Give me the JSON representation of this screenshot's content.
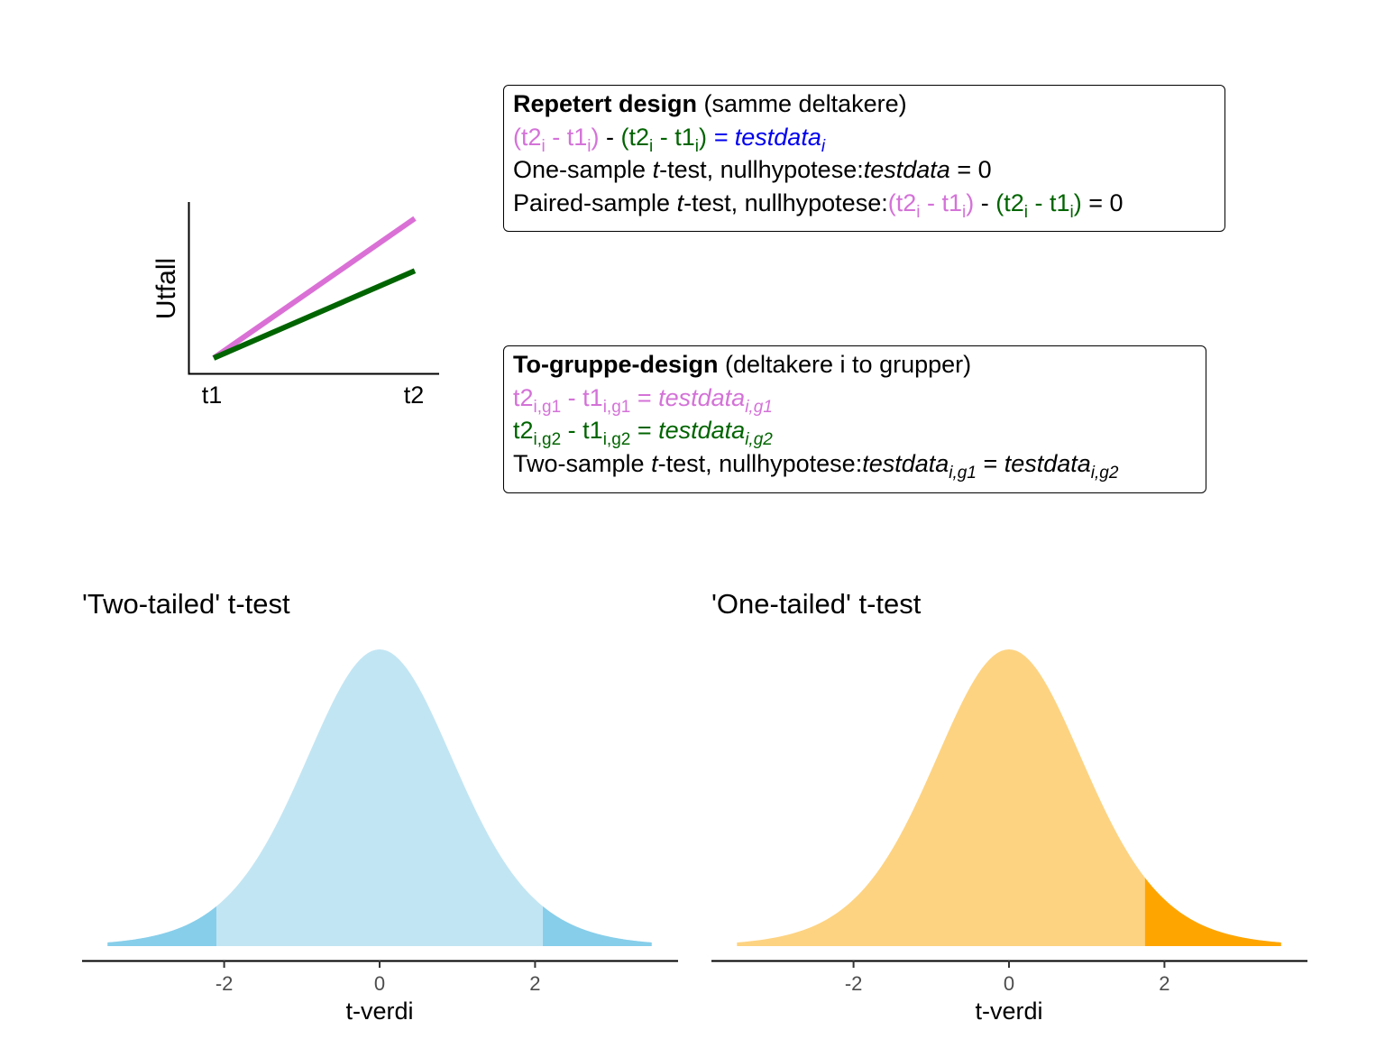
{
  "colors": {
    "violet": "#da70d6",
    "darkgreen": "#006400",
    "blue": "#0000ee",
    "lightblue_fill": "#c2e5f3",
    "skyblue_tail": "#87ceea",
    "lightorange_fill": "#fdd382",
    "orange_tail": "#ffa500"
  },
  "design_plot": {
    "ylabel": "Utfall",
    "xticks": [
      "t1",
      "t2"
    ]
  },
  "repeated_box": {
    "title_bold": "Repetert design",
    "title_rest": " (samme deltakere)",
    "eq_part1": "(t2",
    "sub_i": "i",
    "minus_space": " -  t1",
    "close_paren": ")",
    "minus_between": " -  ",
    "equals_testdata": " = testdata",
    "line3_prefix": "One-sample ",
    "t_italic": "t",
    "line3_mid": "-test,  nullhypotese:",
    "testdata_word": "testdata",
    "equals_zero": " = 0",
    "line4_prefix": "Paired-sample "
  },
  "group_box": {
    "title_bold": "To-gruppe-design",
    "title_rest": "  (deltakere i to grupper)",
    "t2": "t2",
    "t1": "t1",
    "sub_g1": "i,g1",
    "sub_g2": "i,g2",
    "minus_space": " -  ",
    "equals": " = ",
    "testdata_word": "testdata",
    "line4_prefix": "Two-sample ",
    "t_italic": "t",
    "line4_mid": "-test,  nullhypotese:"
  },
  "chart_data": [
    {
      "type": "line",
      "x": [
        "t1",
        "t2"
      ],
      "ylabel": "Utfall",
      "series": [
        {
          "color": "#da70d6",
          "values": [
            0,
            0.72
          ]
        },
        {
          "color": "#006400",
          "values": [
            0,
            0.45
          ]
        }
      ]
    },
    {
      "type": "area",
      "title": "'Two-tailed' t-test",
      "xlabel": "t-verdi",
      "xticks": [
        -2,
        0,
        2
      ],
      "xlim": [
        -3.5,
        3.5
      ],
      "distribution": "t density",
      "critical_values": [
        -2.1,
        2.1
      ],
      "fill_color": "#c2e5f3",
      "tail_color": "#87ceea"
    },
    {
      "type": "area",
      "title": "'One-tailed' t-test",
      "xlabel": "t-verdi",
      "xticks": [
        -2,
        0,
        2
      ],
      "xlim": [
        -3.5,
        3.5
      ],
      "distribution": "t density",
      "critical_values": [
        1.75
      ],
      "fill_color": "#fdd382",
      "tail_color": "#ffa500"
    }
  ]
}
